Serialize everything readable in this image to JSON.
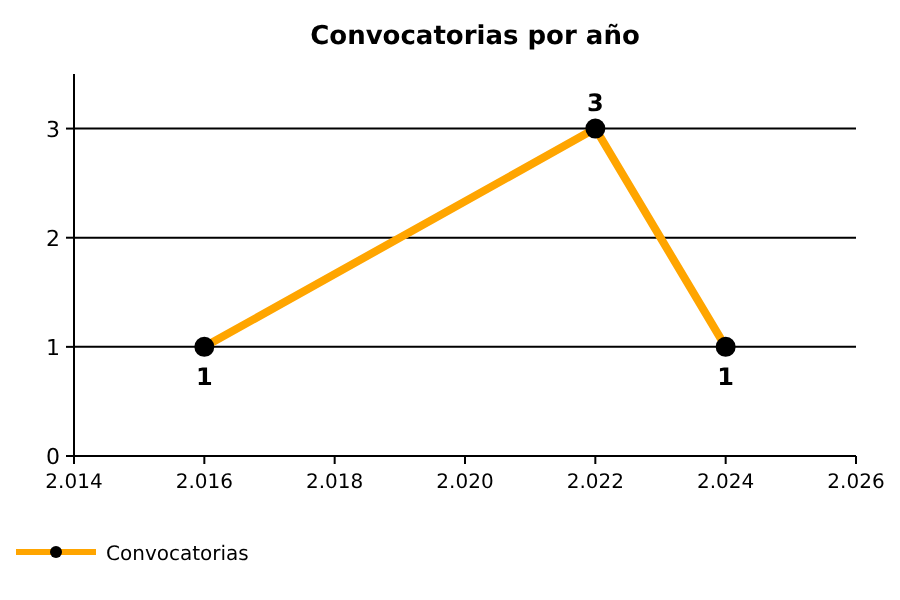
{
  "chart_data": {
    "type": "line",
    "title": "Convocatorias por año",
    "x": [
      2016,
      2022,
      2024
    ],
    "series": [
      {
        "name": "Convocatorias",
        "color": "#ffa500",
        "values": [
          1,
          3,
          1
        ]
      }
    ],
    "xlim": [
      2014,
      2026
    ],
    "xticks": [
      {
        "value": 2014,
        "label": "2.014"
      },
      {
        "value": 2016,
        "label": "2.016"
      },
      {
        "value": 2018,
        "label": "2.018"
      },
      {
        "value": 2020,
        "label": "2.020"
      },
      {
        "value": 2022,
        "label": "2.022"
      },
      {
        "value": 2024,
        "label": "2.024"
      },
      {
        "value": 2026,
        "label": "2.026"
      }
    ],
    "ylim": [
      0,
      3.5
    ],
    "yticks": [
      0,
      1,
      2,
      3
    ],
    "grid": "y",
    "legend": "bottom left",
    "marker": "circle",
    "line_style": "solid",
    "data_labels": true
  }
}
